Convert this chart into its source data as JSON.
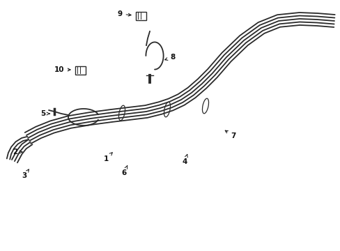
{
  "background_color": "#ffffff",
  "line_color": "#2a2a2a",
  "figsize": [
    4.89,
    3.6
  ],
  "dpi": 100,
  "xlim": [
    0,
    489
  ],
  "ylim": [
    0,
    360
  ]
}
